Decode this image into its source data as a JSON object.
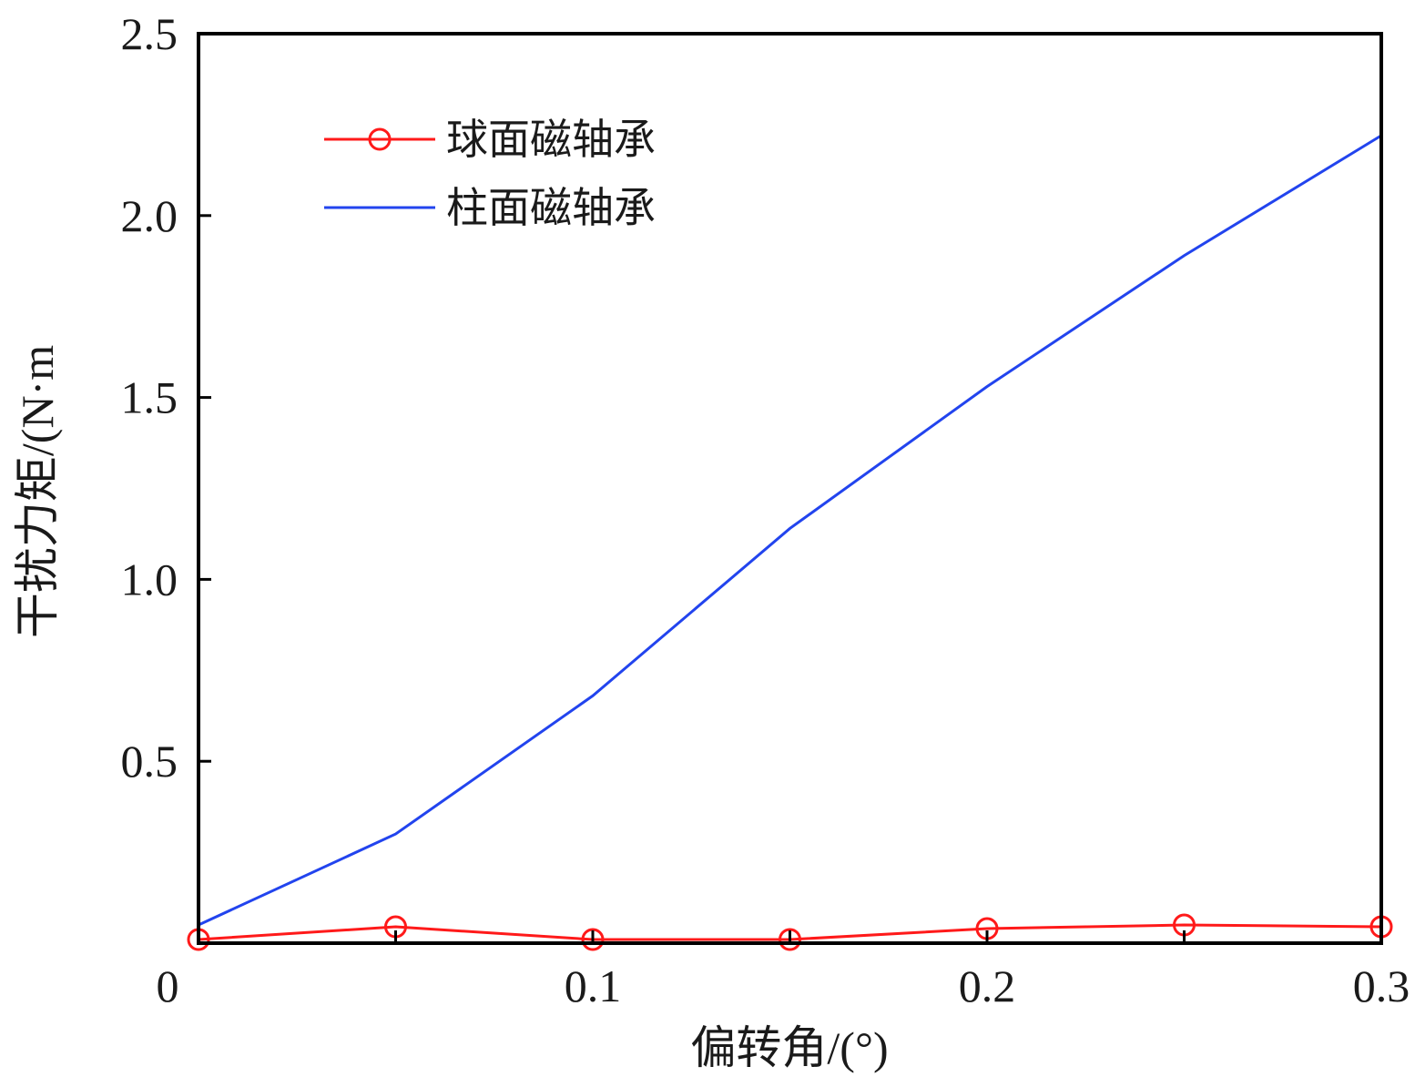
{
  "chart_data": {
    "type": "line",
    "xlabel": "偏转角/(°)",
    "ylabel": "干扰力矩/(N·m",
    "xlim": [
      0,
      0.3
    ],
    "ylim": [
      0,
      2.5
    ],
    "x_ticks": [
      {
        "value": 0,
        "label": "0"
      },
      {
        "value": 0.1,
        "label": "0.1"
      },
      {
        "value": 0.2,
        "label": "0.2"
      },
      {
        "value": 0.3,
        "label": "0.3"
      }
    ],
    "y_ticks": [
      {
        "value": 0.5,
        "label": "0.5"
      },
      {
        "value": 1.0,
        "label": "1.0"
      },
      {
        "value": 1.5,
        "label": "1.5"
      },
      {
        "value": 2.0,
        "label": "2.0"
      },
      {
        "value": 2.5,
        "label": "2.5"
      }
    ],
    "grid": false,
    "legend_position": "top-left",
    "series": [
      {
        "name": "球面磁轴承",
        "color": "#ff1a1a",
        "marker": "circle-open",
        "x": [
          0,
          0.05,
          0.1,
          0.15,
          0.2,
          0.25,
          0.3
        ],
        "y": [
          0.01,
          0.045,
          0.01,
          0.01,
          0.04,
          0.05,
          0.045
        ]
      },
      {
        "name": "柱面磁轴承",
        "color": "#2244ee",
        "marker": "none",
        "x": [
          0,
          0.05,
          0.1,
          0.15,
          0.2,
          0.25,
          0.3
        ],
        "y": [
          0.05,
          0.3,
          0.68,
          1.14,
          1.53,
          1.89,
          2.22
        ]
      }
    ]
  }
}
